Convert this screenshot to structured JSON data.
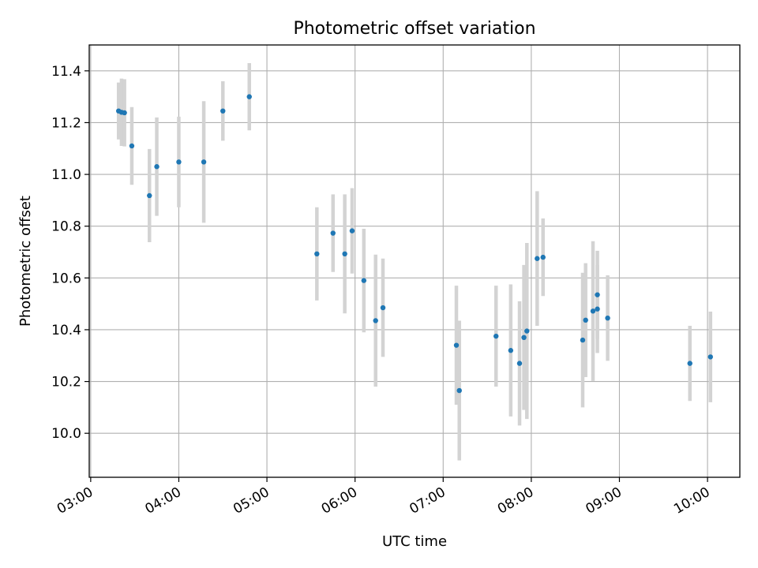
{
  "chart_data": {
    "type": "scatter",
    "title": "Photometric offset variation",
    "xlabel": "UTC time",
    "ylabel": "Photometric offset",
    "x_unit": "UTC time (HH:MM)",
    "xlim": [
      "02:59",
      "10:22"
    ],
    "ylim": [
      9.83,
      11.5
    ],
    "x_ticks": [
      "03:00",
      "04:00",
      "05:00",
      "06:00",
      "07:00",
      "08:00",
      "09:00",
      "10:00"
    ],
    "y_ticks": [
      10.0,
      10.2,
      10.4,
      10.6,
      10.8,
      11.0,
      11.2,
      11.4
    ],
    "y_tick_labels": [
      "10.0",
      "10.2",
      "10.4",
      "10.6",
      "10.8",
      "11.0",
      "11.2",
      "11.4"
    ],
    "grid": true,
    "marker_color": "#1f77b4",
    "errorbar_color": "#d3d3d3",
    "points": [
      {
        "x": "03:19",
        "y": 11.245,
        "err": 0.11
      },
      {
        "x": "03:21",
        "y": 11.24,
        "err": 0.13
      },
      {
        "x": "03:23",
        "y": 11.238,
        "err": 0.13
      },
      {
        "x": "03:28",
        "y": 11.11,
        "err": 0.15
      },
      {
        "x": "03:40",
        "y": 10.918,
        "err": 0.18
      },
      {
        "x": "03:45",
        "y": 11.03,
        "err": 0.19
      },
      {
        "x": "04:00",
        "y": 11.048,
        "err": 0.175
      },
      {
        "x": "04:17",
        "y": 11.048,
        "err": 0.235
      },
      {
        "x": "04:30",
        "y": 11.245,
        "err": 0.115
      },
      {
        "x": "04:48",
        "y": 11.3,
        "err": 0.13
      },
      {
        "x": "05:34",
        "y": 10.693,
        "err": 0.18
      },
      {
        "x": "05:45",
        "y": 10.773,
        "err": 0.15
      },
      {
        "x": "05:53",
        "y": 10.693,
        "err": 0.23
      },
      {
        "x": "05:58",
        "y": 10.782,
        "err": 0.165
      },
      {
        "x": "06:06",
        "y": 10.59,
        "err": 0.2
      },
      {
        "x": "06:14",
        "y": 10.435,
        "err": 0.255
      },
      {
        "x": "06:19",
        "y": 10.485,
        "err": 0.19
      },
      {
        "x": "07:09",
        "y": 10.34,
        "err": 0.23
      },
      {
        "x": "07:11",
        "y": 10.165,
        "err": 0.27
      },
      {
        "x": "07:36",
        "y": 10.375,
        "err": 0.195
      },
      {
        "x": "07:46",
        "y": 10.32,
        "err": 0.255
      },
      {
        "x": "07:52",
        "y": 10.27,
        "err": 0.24
      },
      {
        "x": "07:55",
        "y": 10.37,
        "err": 0.28
      },
      {
        "x": "07:57",
        "y": 10.395,
        "err": 0.34
      },
      {
        "x": "08:04",
        "y": 10.675,
        "err": 0.26
      },
      {
        "x": "08:08",
        "y": 10.68,
        "err": 0.15
      },
      {
        "x": "08:35",
        "y": 10.36,
        "err": 0.26
      },
      {
        "x": "08:37",
        "y": 10.437,
        "err": 0.22
      },
      {
        "x": "08:42",
        "y": 10.472,
        "err": 0.27
      },
      {
        "x": "08:45",
        "y": 10.535,
        "err": 0.17
      },
      {
        "x": "08:45",
        "y": 10.48,
        "err": 0.17
      },
      {
        "x": "08:52",
        "y": 10.445,
        "err": 0.165
      },
      {
        "x": "09:48",
        "y": 10.27,
        "err": 0.145
      },
      {
        "x": "10:02",
        "y": 10.295,
        "err": 0.175
      }
    ]
  }
}
